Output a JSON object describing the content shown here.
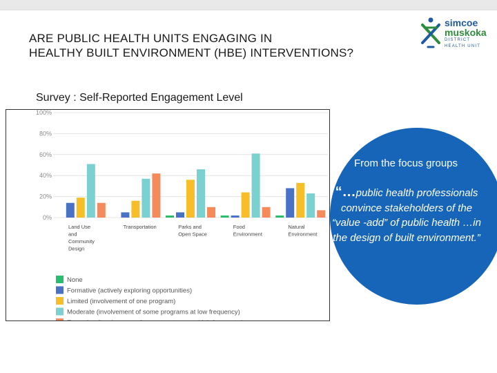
{
  "slide": {
    "title_line1": "ARE PUBLIC HEALTH UNITS ENGAGING IN",
    "title_line2": "HEALTHY BUILT ENVIRONMENT (HBE) INTERVENTIONS?",
    "subtitle": "Survey : Self-Reported Engagement Level"
  },
  "logo": {
    "line1": "simcoe",
    "line2": "muskoka",
    "line3": "DISTRICT HEALTH UNIT"
  },
  "focus": {
    "title": "From the focus groups",
    "quote_lead": "“…",
    "quote_text": "public health professionals convince stakeholders of the “value -add” of public health …in the design of built environment.”"
  },
  "colors": {
    "none": "#2bbd6e",
    "formative": "#4a72c4",
    "limited": "#f6be28",
    "moderate": "#7bd0d0",
    "extensive": "#f58a5c",
    "circle": "#1665b8"
  },
  "chart_data": {
    "type": "bar",
    "categories": [
      [
        "Land Use",
        "and",
        "Community",
        "Design"
      ],
      [
        "Transportation"
      ],
      [
        "Parks and",
        "Open Space"
      ],
      [
        "Food",
        "Environment"
      ],
      [
        "Natural",
        "Environment"
      ]
    ],
    "y_ticks": [
      "0%",
      "20%",
      "40%",
      "60%",
      "80%",
      "100%"
    ],
    "ylim": [
      0,
      100
    ],
    "series": [
      {
        "key": "none",
        "name": "None",
        "values": [
          0,
          0,
          2,
          2,
          2
        ]
      },
      {
        "key": "formative",
        "name": "Formative (actively exploring opportunities)",
        "values": [
          14,
          5,
          5,
          2,
          28
        ]
      },
      {
        "key": "limited",
        "name": "Limited (involvement of one program)",
        "values": [
          19,
          16,
          36,
          24,
          33
        ]
      },
      {
        "key": "moderate",
        "name": "Moderate (involvement of some programs at low frequency)",
        "values": [
          51,
          37,
          46,
          61,
          23
        ]
      },
      {
        "key": "extensive",
        "name": "Extensive (involvement of many programs at high frequency)",
        "values": [
          14,
          42,
          10,
          10,
          7
        ]
      }
    ]
  }
}
